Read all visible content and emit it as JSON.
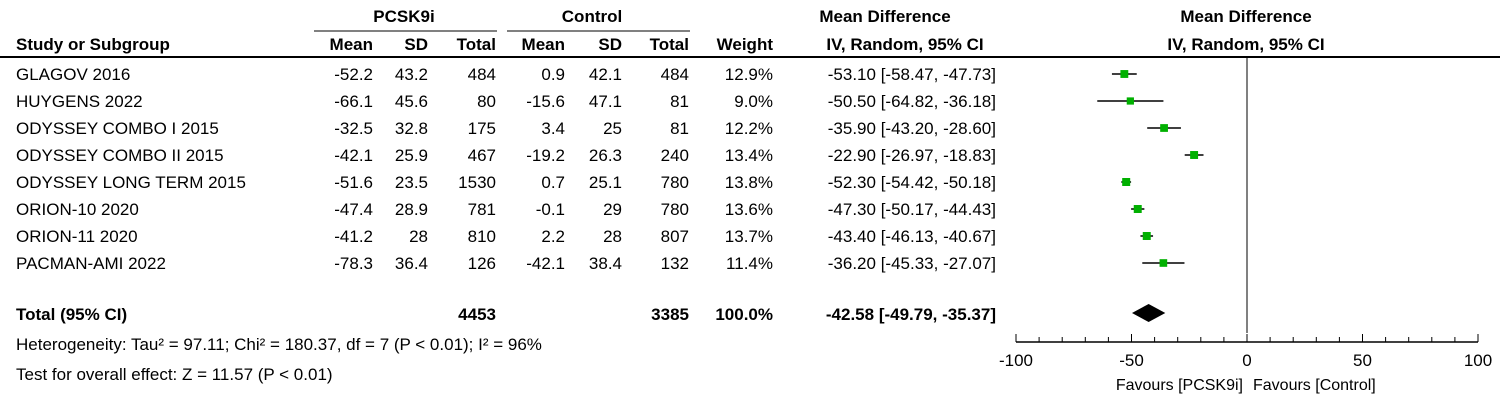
{
  "headers": {
    "group1": "PCSK9i",
    "group2": "Control",
    "md_top": "Mean Difference",
    "md_bottom": "IV, Random, 95% CI",
    "plot_top": "Mean Difference",
    "plot_bottom": "IV, Random, 95% CI",
    "study": "Study or Subgroup",
    "mean1": "Mean",
    "sd1": "SD",
    "total1": "Total",
    "mean2": "Mean",
    "sd2": "SD",
    "total2": "Total",
    "weight": "Weight"
  },
  "studies": [
    {
      "name": "GLAGOV 2016",
      "mean1": "-52.2",
      "sd1": "43.2",
      "n1": "484",
      "mean2": "0.9",
      "sd2": "42.1",
      "n2": "484",
      "weight": "12.9%",
      "ci_text": "-53.10 [-58.47, -47.73]"
    },
    {
      "name": "HUYGENS 2022",
      "mean1": "-66.1",
      "sd1": "45.6",
      "n1": "80",
      "mean2": "-15.6",
      "sd2": "47.1",
      "n2": "81",
      "weight": "9.0%",
      "ci_text": "-50.50 [-64.82, -36.18]"
    },
    {
      "name": "ODYSSEY COMBO I 2015",
      "mean1": "-32.5",
      "sd1": "32.8",
      "n1": "175",
      "mean2": "3.4",
      "sd2": "25",
      "n2": "81",
      "weight": "12.2%",
      "ci_text": "-35.90 [-43.20, -28.60]"
    },
    {
      "name": "ODYSSEY COMBO II 2015",
      "mean1": "-42.1",
      "sd1": "25.9",
      "n1": "467",
      "mean2": "-19.2",
      "sd2": "26.3",
      "n2": "240",
      "weight": "13.4%",
      "ci_text": "-22.90 [-26.97, -18.83]"
    },
    {
      "name": "ODYSSEY LONG TERM 2015",
      "mean1": "-51.6",
      "sd1": "23.5",
      "n1": "1530",
      "mean2": "0.7",
      "sd2": "25.1",
      "n2": "780",
      "weight": "13.8%",
      "ci_text": "-52.30 [-54.42, -50.18]"
    },
    {
      "name": "ORION-10 2020",
      "mean1": "-47.4",
      "sd1": "28.9",
      "n1": "781",
      "mean2": "-0.1",
      "sd2": "29",
      "n2": "780",
      "weight": "13.6%",
      "ci_text": "-47.30 [-50.17, -44.43]"
    },
    {
      "name": "ORION-11 2020",
      "mean1": "-41.2",
      "sd1": "28",
      "n1": "810",
      "mean2": "2.2",
      "sd2": "28",
      "n2": "807",
      "weight": "13.7%",
      "ci_text": "-43.40 [-46.13, -40.67]"
    },
    {
      "name": "PACMAN-AMI 2022",
      "mean1": "-78.3",
      "sd1": "36.4",
      "n1": "126",
      "mean2": "-42.1",
      "sd2": "38.4",
      "n2": "132",
      "weight": "11.4%",
      "ci_text": "-36.20 [-45.33, -27.07]"
    }
  ],
  "total": {
    "label": "Total (95% CI)",
    "n1": "4453",
    "n2": "3385",
    "weight": "100.0%",
    "ci_text": "-42.58 [-49.79, -35.37]"
  },
  "heterogeneity": "Heterogeneity: Tau² = 97.11; Chi² = 180.37, df = 7 (P < 0.01); I² = 96%",
  "overall_effect": "Test for overall effect: Z = 11.57 (P < 0.01)",
  "axis": {
    "ticks": [
      "-100",
      "-50",
      "0",
      "50",
      "100"
    ],
    "favours_left": "Favours [PCSK9i]",
    "favours_right": "Favours [Control]"
  },
  "colors": {
    "marker": "#00b000",
    "diamond": "#000000",
    "line": "#000000"
  },
  "chart_data": {
    "type": "forest",
    "xlim": [
      -100,
      100
    ],
    "x_ticks": [
      -100,
      -50,
      0,
      50,
      100
    ],
    "null_line": 0,
    "series": [
      {
        "name": "GLAGOV 2016",
        "estimate": -53.1,
        "lower": -58.47,
        "upper": -47.73,
        "weight": 12.9
      },
      {
        "name": "HUYGENS 2022",
        "estimate": -50.5,
        "lower": -64.82,
        "upper": -36.18,
        "weight": 9.0
      },
      {
        "name": "ODYSSEY COMBO I 2015",
        "estimate": -35.9,
        "lower": -43.2,
        "upper": -28.6,
        "weight": 12.2
      },
      {
        "name": "ODYSSEY COMBO II 2015",
        "estimate": -22.9,
        "lower": -26.97,
        "upper": -18.83,
        "weight": 13.4
      },
      {
        "name": "ODYSSEY LONG TERM 2015",
        "estimate": -52.3,
        "lower": -54.42,
        "upper": -50.18,
        "weight": 13.8
      },
      {
        "name": "ORION-10 2020",
        "estimate": -47.3,
        "lower": -50.17,
        "upper": -44.43,
        "weight": 13.6
      },
      {
        "name": "ORION-11 2020",
        "estimate": -43.4,
        "lower": -46.13,
        "upper": -40.67,
        "weight": 13.7
      },
      {
        "name": "PACMAN-AMI 2022",
        "estimate": -36.2,
        "lower": -45.33,
        "upper": -27.07,
        "weight": 11.4
      }
    ],
    "pooled": {
      "name": "Total (95% CI)",
      "estimate": -42.58,
      "lower": -49.79,
      "upper": -35.37
    }
  }
}
